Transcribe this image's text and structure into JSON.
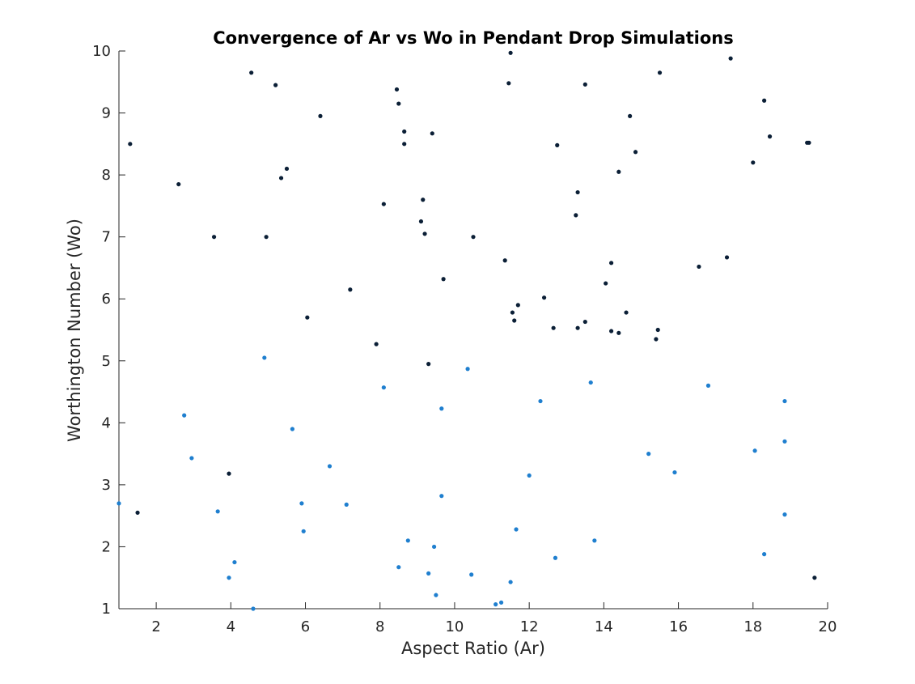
{
  "chart_data": {
    "type": "scatter",
    "title": "Convergence of Ar vs Wo in Pendant Drop Simulations",
    "xlabel": "Aspect Ratio (Ar)",
    "ylabel": "Worthington Number (Wo)",
    "xlim": [
      1,
      20
    ],
    "ylim": [
      1,
      10
    ],
    "xticks": [
      2,
      4,
      6,
      8,
      10,
      12,
      14,
      16,
      18,
      20
    ],
    "yticks": [
      1,
      2,
      3,
      4,
      5,
      6,
      7,
      8,
      9,
      10
    ],
    "grid": false,
    "legend": "none",
    "series": [
      {
        "color": "#0b1f36",
        "points": [
          [
            1.3,
            8.5
          ],
          [
            1.5,
            2.55
          ],
          [
            2.6,
            7.85
          ],
          [
            3.55,
            7.0
          ],
          [
            3.95,
            3.18
          ],
          [
            4.55,
            9.65
          ],
          [
            4.95,
            7.0
          ],
          [
            5.2,
            9.45
          ],
          [
            5.35,
            7.95
          ],
          [
            5.5,
            8.1
          ],
          [
            6.05,
            5.7
          ],
          [
            6.4,
            8.95
          ],
          [
            7.2,
            6.15
          ],
          [
            7.9,
            5.27
          ],
          [
            8.1,
            7.53
          ],
          [
            8.45,
            9.38
          ],
          [
            8.5,
            9.15
          ],
          [
            8.65,
            8.7
          ],
          [
            8.65,
            8.5
          ],
          [
            9.1,
            7.25
          ],
          [
            9.15,
            7.6
          ],
          [
            9.2,
            7.05
          ],
          [
            9.3,
            4.95
          ],
          [
            9.4,
            8.67
          ],
          [
            9.7,
            6.32
          ],
          [
            10.5,
            7.0
          ],
          [
            11.35,
            6.62
          ],
          [
            11.45,
            9.48
          ],
          [
            11.5,
            9.97
          ],
          [
            11.55,
            5.78
          ],
          [
            11.6,
            5.65
          ],
          [
            11.7,
            5.9
          ],
          [
            12.4,
            6.02
          ],
          [
            12.65,
            5.53
          ],
          [
            12.75,
            8.48
          ],
          [
            13.25,
            7.35
          ],
          [
            13.3,
            7.72
          ],
          [
            13.3,
            5.53
          ],
          [
            13.5,
            9.46
          ],
          [
            13.5,
            5.63
          ],
          [
            14.05,
            6.25
          ],
          [
            14.2,
            6.58
          ],
          [
            14.2,
            5.48
          ],
          [
            14.4,
            8.05
          ],
          [
            14.4,
            5.45
          ],
          [
            14.6,
            5.78
          ],
          [
            14.7,
            8.95
          ],
          [
            14.85,
            8.37
          ],
          [
            15.4,
            5.35
          ],
          [
            15.45,
            5.5
          ],
          [
            15.5,
            9.65
          ],
          [
            16.55,
            6.52
          ],
          [
            17.3,
            6.67
          ],
          [
            17.4,
            9.88
          ],
          [
            18.0,
            8.2
          ],
          [
            18.3,
            9.2
          ],
          [
            18.45,
            8.62
          ],
          [
            19.45,
            8.52
          ],
          [
            19.5,
            8.52
          ],
          [
            19.65,
            1.5
          ]
        ]
      },
      {
        "color": "#1f7fcf",
        "points": [
          [
            1.0,
            2.7
          ],
          [
            2.75,
            4.12
          ],
          [
            2.95,
            3.43
          ],
          [
            3.65,
            2.57
          ],
          [
            3.95,
            1.5
          ],
          [
            4.1,
            1.75
          ],
          [
            4.6,
            1.0
          ],
          [
            4.9,
            5.05
          ],
          [
            5.65,
            3.9
          ],
          [
            5.9,
            2.7
          ],
          [
            5.95,
            2.25
          ],
          [
            6.65,
            3.3
          ],
          [
            7.1,
            2.68
          ],
          [
            8.1,
            4.57
          ],
          [
            8.5,
            1.67
          ],
          [
            8.75,
            2.1
          ],
          [
            9.3,
            1.57
          ],
          [
            9.45,
            2.0
          ],
          [
            9.5,
            1.22
          ],
          [
            9.65,
            4.23
          ],
          [
            9.65,
            2.82
          ],
          [
            10.35,
            4.87
          ],
          [
            10.45,
            1.55
          ],
          [
            11.1,
            1.07
          ],
          [
            11.25,
            1.1
          ],
          [
            11.5,
            1.43
          ],
          [
            11.65,
            2.28
          ],
          [
            12.0,
            3.15
          ],
          [
            12.3,
            4.35
          ],
          [
            12.7,
            1.82
          ],
          [
            13.65,
            4.65
          ],
          [
            13.75,
            2.1
          ],
          [
            15.2,
            3.5
          ],
          [
            15.9,
            3.2
          ],
          [
            16.8,
            4.6
          ],
          [
            18.05,
            3.55
          ],
          [
            18.3,
            1.88
          ],
          [
            18.85,
            4.35
          ],
          [
            18.85,
            3.7
          ],
          [
            18.85,
            2.52
          ]
        ]
      }
    ]
  }
}
